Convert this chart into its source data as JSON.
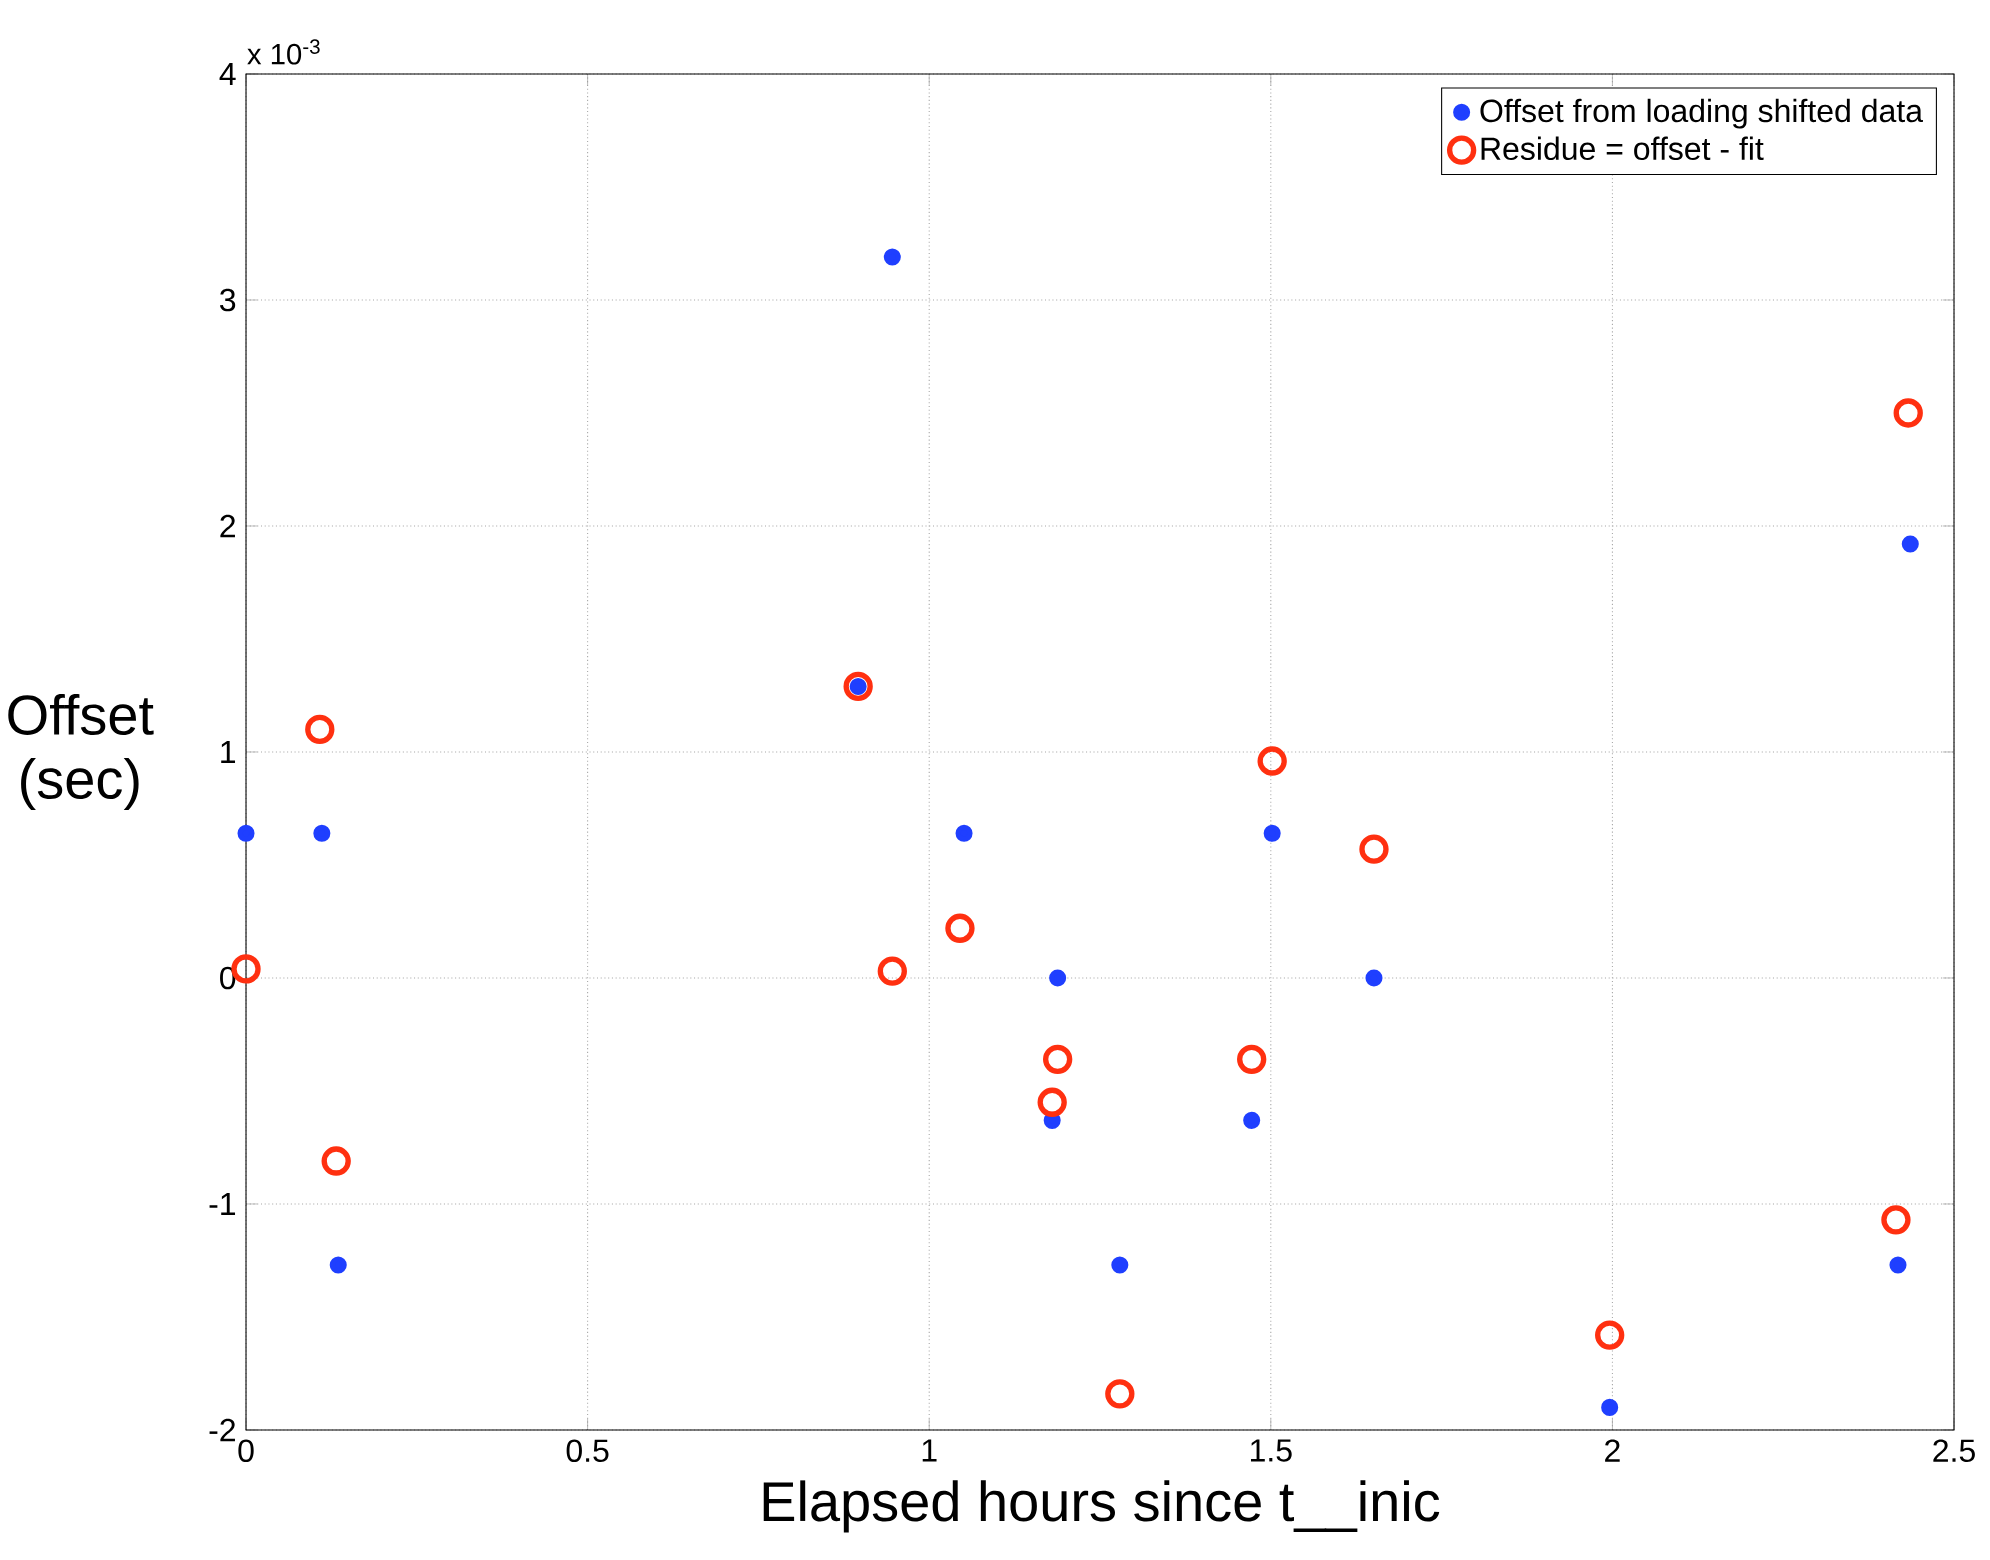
{
  "chart_data": {
    "type": "scatter",
    "xlabel": "Elapsed hours since t__inic",
    "ylabel": "Offset (sec)",
    "annotations": [
      "x 10$^{-3}$"
    ],
    "xlim": [
      0,
      2.5
    ],
    "ylim": [
      -2,
      4
    ],
    "xticks": [
      0,
      0.5,
      1,
      1.5,
      2,
      2.5
    ],
    "yticks": [
      -2,
      -1,
      0,
      1,
      2,
      3,
      4
    ],
    "grid": true,
    "legend": "top right",
    "marker": "circle",
    "series": [
      {
        "name": "Offset from loading shifted data",
        "color": "#1f3fff",
        "x": [
          0,
          0.111,
          0.135,
          0.896,
          0.946,
          1.051,
          1.188,
          1.18,
          1.279,
          1.472,
          1.502,
          1.651,
          1.996,
          2.418,
          2.436
        ],
        "values": [
          0.64,
          0.64,
          -1.27,
          1.29,
          3.19,
          0.64,
          0,
          -0.63,
          -1.27,
          -0.63,
          0.64,
          0,
          -1.9,
          -1.27,
          1.92
        ]
      },
      {
        "name": "Residue = offset - fit",
        "color": "#ff3010",
        "x": [
          0,
          0.108,
          0.132,
          0.896,
          0.946,
          1.045,
          1.188,
          1.18,
          1.279,
          1.472,
          1.502,
          1.651,
          1.996,
          2.415,
          2.433
        ],
        "values": [
          0.04,
          1.1,
          -0.81,
          1.29,
          0.03,
          0.22,
          -0.36,
          -0.55,
          -1.84,
          -0.36,
          0.96,
          0.57,
          -1.58,
          -1.07,
          2.5
        ]
      }
    ]
  }
}
